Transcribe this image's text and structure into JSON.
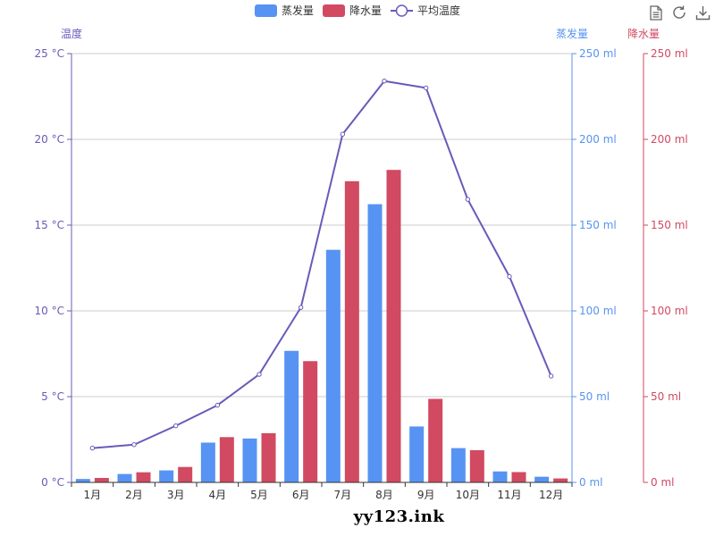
{
  "chart_data": {
    "type": "bar",
    "categories": [
      "1月",
      "2月",
      "3月",
      "4月",
      "5月",
      "6月",
      "7月",
      "8月",
      "9月",
      "10月",
      "11月",
      "12月"
    ],
    "series": [
      {
        "name": "蒸发量",
        "type": "bar",
        "axis": "right-1",
        "color": "#5793f3",
        "values": [
          2.0,
          4.9,
          7.0,
          23.2,
          25.6,
          76.7,
          135.6,
          162.2,
          32.6,
          20.0,
          6.4,
          3.3
        ]
      },
      {
        "name": "降水量",
        "type": "bar",
        "axis": "right-2",
        "color": "#d14a61",
        "values": [
          2.6,
          5.9,
          9.0,
          26.4,
          28.7,
          70.7,
          175.6,
          182.2,
          48.7,
          18.8,
          6.0,
          2.3
        ]
      },
      {
        "name": "平均温度",
        "type": "line",
        "axis": "left",
        "color": "#675bba",
        "values": [
          2.0,
          2.2,
          3.3,
          4.5,
          6.3,
          10.2,
          20.3,
          23.4,
          23.0,
          16.5,
          12.0,
          6.2
        ]
      }
    ],
    "y_left": {
      "name": "温度",
      "min": 0,
      "max": 25,
      "ticks": [
        0,
        5,
        10,
        15,
        20,
        25
      ],
      "unit": " °C",
      "color": "#675bba"
    },
    "y_right1": {
      "name": "蒸发量",
      "min": 0,
      "max": 250,
      "ticks": [
        0,
        50,
        100,
        150,
        200,
        250
      ],
      "unit": " ml",
      "color": "#5793f3"
    },
    "y_right2": {
      "name": "降水量",
      "min": 0,
      "max": 250,
      "ticks": [
        0,
        50,
        100,
        150,
        200,
        250
      ],
      "unit": " ml",
      "color": "#d14a61"
    },
    "grid": true,
    "legend_position": "top-center"
  },
  "toolbox": {
    "icons": [
      "data-view-icon",
      "restore-icon",
      "save-image-icon"
    ]
  },
  "watermark": "yy123.ink"
}
